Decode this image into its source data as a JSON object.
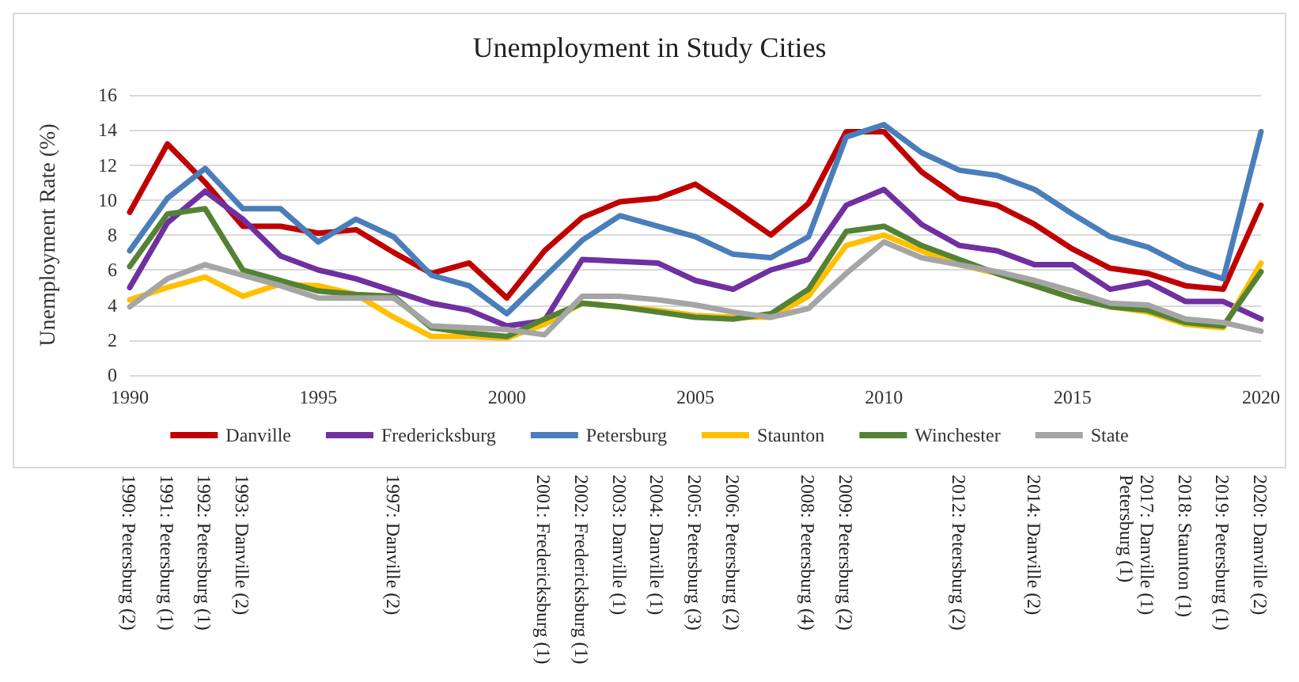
{
  "chart_data": {
    "type": "line",
    "title": "Unemployment in Study Cities",
    "ylabel": "Unemployment Rate (%)",
    "x": [
      1990,
      1991,
      1992,
      1993,
      1994,
      1995,
      1996,
      1997,
      1998,
      1999,
      2000,
      2001,
      2002,
      2003,
      2004,
      2005,
      2006,
      2007,
      2008,
      2009,
      2010,
      2011,
      2012,
      2013,
      2014,
      2015,
      2016,
      2017,
      2018,
      2019,
      2020
    ],
    "series": [
      {
        "name": "Danville",
        "color": "#c00000",
        "values": [
          9.3,
          13.2,
          11.0,
          8.5,
          8.5,
          8.1,
          8.3,
          7.0,
          5.8,
          6.4,
          4.4,
          7.1,
          9.0,
          9.9,
          10.1,
          10.9,
          9.5,
          8.0,
          9.8,
          13.9,
          13.9,
          11.6,
          10.1,
          9.7,
          8.6,
          7.2,
          6.1,
          5.8,
          5.1,
          4.9,
          9.7
        ]
      },
      {
        "name": "Fredericksburg",
        "color": "#7030a0",
        "values": [
          5.0,
          8.7,
          10.5,
          8.9,
          6.8,
          6.0,
          5.5,
          4.8,
          4.1,
          3.7,
          2.8,
          3.1,
          6.6,
          6.5,
          6.4,
          5.4,
          4.9,
          6.0,
          6.6,
          9.7,
          10.6,
          8.6,
          7.4,
          7.1,
          6.3,
          6.3,
          4.9,
          5.3,
          4.2,
          4.2,
          3.2
        ]
      },
      {
        "name": "Petersburg",
        "color": "#4a7ebb",
        "values": [
          7.1,
          10.1,
          11.8,
          9.5,
          9.5,
          7.6,
          8.9,
          7.9,
          5.7,
          5.1,
          3.5,
          5.6,
          7.7,
          9.1,
          8.5,
          7.9,
          6.9,
          6.7,
          7.9,
          13.6,
          14.3,
          12.7,
          11.7,
          11.4,
          10.6,
          9.2,
          7.9,
          7.3,
          6.2,
          5.5,
          13.9
        ]
      },
      {
        "name": "Staunton",
        "color": "#ffc000",
        "values": [
          4.3,
          5.0,
          5.6,
          4.5,
          5.2,
          5.1,
          4.6,
          3.3,
          2.2,
          2.2,
          2.1,
          2.9,
          4.1,
          3.9,
          3.7,
          3.4,
          3.3,
          3.3,
          4.5,
          7.4,
          8.0,
          7.1,
          6.3,
          5.8,
          5.1,
          4.4,
          3.9,
          3.6,
          2.9,
          2.7,
          6.4
        ]
      },
      {
        "name": "Winchester",
        "color": "#548235",
        "values": [
          6.2,
          9.2,
          9.5,
          6.0,
          5.4,
          4.8,
          4.6,
          4.5,
          2.7,
          2.4,
          2.2,
          3.2,
          4.1,
          3.9,
          3.6,
          3.3,
          3.2,
          3.5,
          4.9,
          8.2,
          8.5,
          7.4,
          6.6,
          5.8,
          5.1,
          4.4,
          3.9,
          3.7,
          3.0,
          2.8,
          5.9
        ]
      },
      {
        "name": "State",
        "color": "#a5a5a5",
        "values": [
          3.9,
          5.5,
          6.3,
          5.7,
          5.1,
          4.4,
          4.4,
          4.4,
          2.8,
          2.7,
          2.6,
          2.3,
          4.5,
          4.5,
          4.3,
          4.0,
          3.6,
          3.3,
          3.8,
          5.8,
          7.6,
          6.7,
          6.3,
          5.9,
          5.4,
          4.8,
          4.1,
          4.0,
          3.2,
          3.0,
          2.5
        ]
      }
    ],
    "xlim": [
      1990,
      2020
    ],
    "xticks": [
      1990,
      1995,
      2000,
      2005,
      2010,
      2015,
      2020
    ],
    "ylim": [
      0,
      16
    ],
    "yticks": [
      0,
      2,
      4,
      6,
      8,
      10,
      12,
      14,
      16
    ],
    "grid": "y",
    "legend": "bottom",
    "marker": "none",
    "line_style": "solid",
    "annotations": [
      "1990: Petersburg (2)",
      "1991: Petersburg (1)",
      "1992: Petersburg (1)",
      "1993: Danville (2)",
      "1997: Danville (2)",
      "2001: Fredericksburg (1)",
      "2002: Fredericksburg (1)",
      "2003: Danville (1)",
      "2004: Danville (1)",
      "2005: Petersburg (3)",
      "2006: Petersburg (2)",
      "2008: Petersburg (4)",
      "2009: Petersburg (2)",
      "2012: Petersburg (2)",
      "2014: Danville (2)",
      "2017: Danville (1) Petersburg (1)",
      "2018: Staunton (1)",
      "2019: Petersburg (1)",
      "2020: Danville (2)"
    ]
  }
}
